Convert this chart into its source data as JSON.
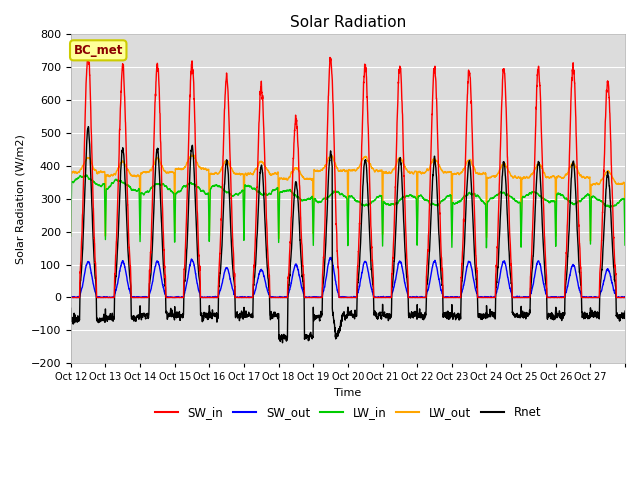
{
  "title": "Solar Radiation",
  "ylabel": "Solar Radiation (W/m2)",
  "xlabel": "Time",
  "ylim": [
    -200,
    800
  ],
  "yticks": [
    -200,
    -100,
    0,
    100,
    200,
    300,
    400,
    500,
    600,
    700,
    800
  ],
  "annotation_text": "BC_met",
  "background_color": "#dcdcdc",
  "series": {
    "SW_in": {
      "color": "#ff0000",
      "lw": 1.0
    },
    "SW_out": {
      "color": "#0000ff",
      "lw": 1.0
    },
    "LW_in": {
      "color": "#00cc00",
      "lw": 1.0
    },
    "LW_out": {
      "color": "#ffa500",
      "lw": 1.0
    },
    "Rnet": {
      "color": "#000000",
      "lw": 1.0
    }
  },
  "n_days": 16,
  "pts_per_day": 288,
  "tick_labels": [
    "Oct 12",
    "Oct 13",
    "Oct 14",
    "Oct 15",
    "Oct 16",
    "Oct 17",
    "Oct 18",
    "Oct 19",
    "Oct 20",
    "Oct 21",
    "Oct 22",
    "Oct 23",
    "Oct 24",
    "Oct 25",
    "Oct 26",
    "Oct 27"
  ]
}
